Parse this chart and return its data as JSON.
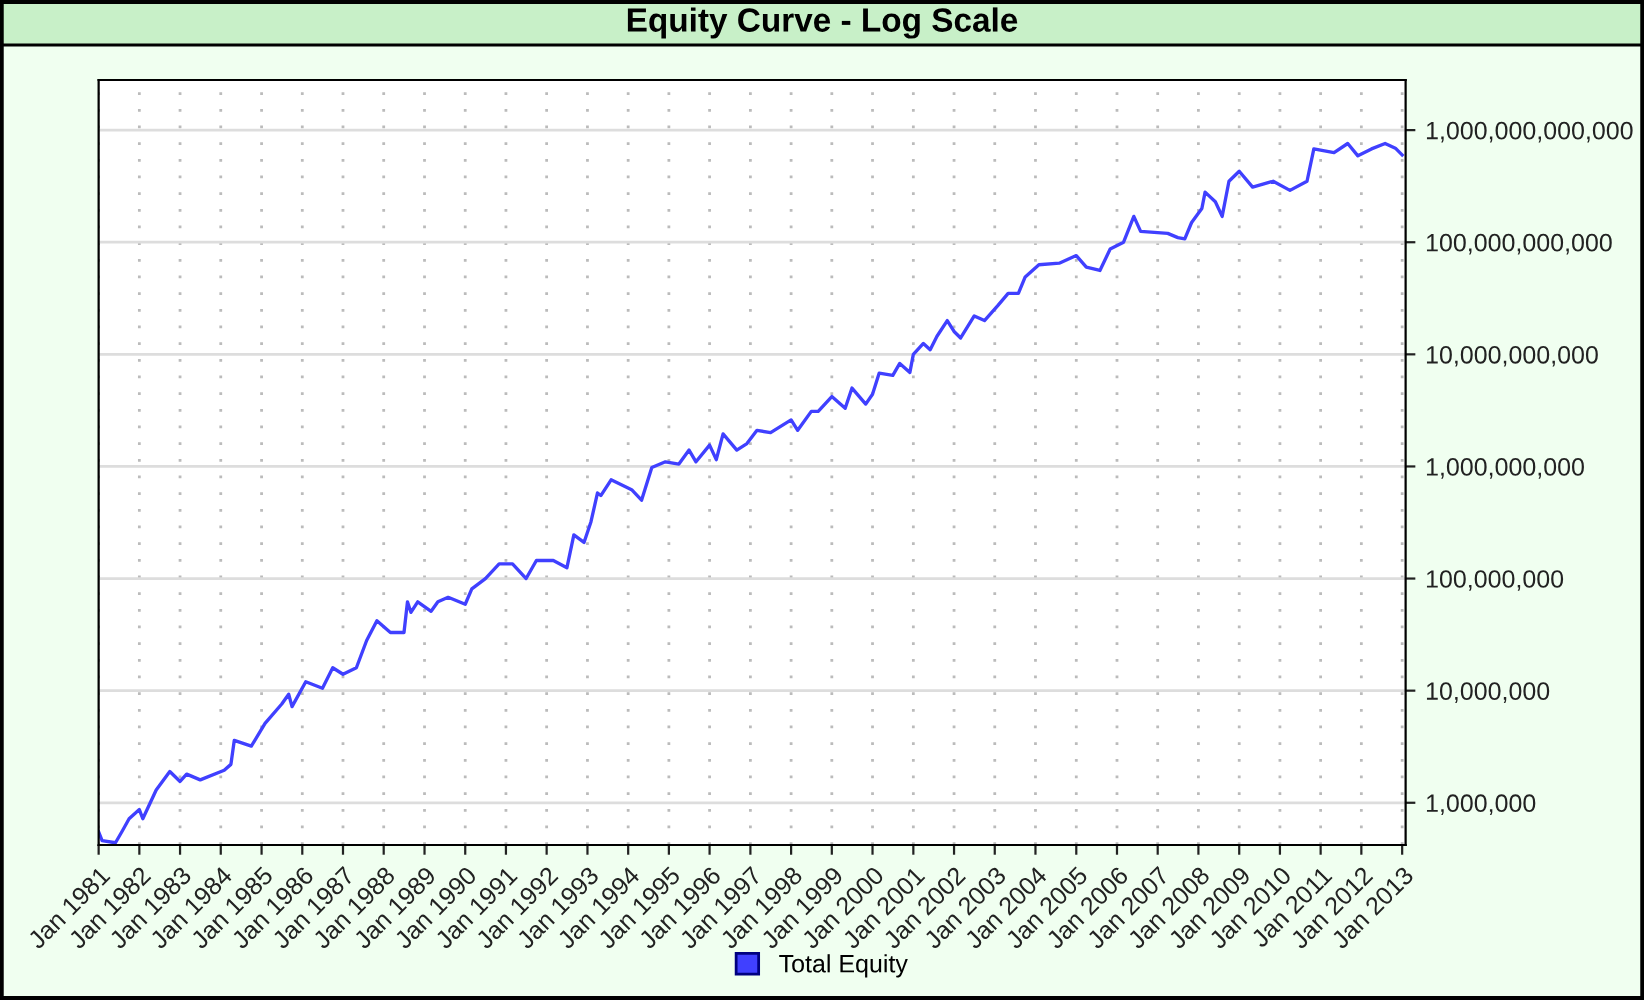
{
  "chart_data": {
    "type": "line",
    "title": "Equity Curve - Log Scale",
    "log": "y",
    "grid": true,
    "legend": "bottom",
    "marker": "none",
    "line_style": "solid",
    "xlim": [
      "1981-01",
      "2013-02"
    ],
    "xticks": [
      {
        "value": "1981-01",
        "label": "Jan 1981"
      },
      {
        "value": "1982-01",
        "label": "Jan 1982"
      },
      {
        "value": "1983-01",
        "label": "Jan 1983"
      },
      {
        "value": "1984-01",
        "label": "Jan 1984"
      },
      {
        "value": "1985-01",
        "label": "Jan 1985"
      },
      {
        "value": "1986-01",
        "label": "Jan 1986"
      },
      {
        "value": "1987-01",
        "label": "Jan 1987"
      },
      {
        "value": "1988-01",
        "label": "Jan 1988"
      },
      {
        "value": "1989-01",
        "label": "Jan 1989"
      },
      {
        "value": "1990-01",
        "label": "Jan 1990"
      },
      {
        "value": "1991-01",
        "label": "Jan 1991"
      },
      {
        "value": "1992-01",
        "label": "Jan 1992"
      },
      {
        "value": "1993-01",
        "label": "Jan 1993"
      },
      {
        "value": "1994-01",
        "label": "Jan 1994"
      },
      {
        "value": "1995-01",
        "label": "Jan 1995"
      },
      {
        "value": "1996-01",
        "label": "Jan 1996"
      },
      {
        "value": "1997-01",
        "label": "Jan 1997"
      },
      {
        "value": "1998-01",
        "label": "Jan 1998"
      },
      {
        "value": "1999-01",
        "label": "Jan 1999"
      },
      {
        "value": "2000-01",
        "label": "Jan 2000"
      },
      {
        "value": "2001-01",
        "label": "Jan 2001"
      },
      {
        "value": "2002-01",
        "label": "Jan 2002"
      },
      {
        "value": "2003-01",
        "label": "Jan 2003"
      },
      {
        "value": "2004-01",
        "label": "Jan 2004"
      },
      {
        "value": "2005-01",
        "label": "Jan 2005"
      },
      {
        "value": "2006-01",
        "label": "Jan 2006"
      },
      {
        "value": "2007-01",
        "label": "Jan 2007"
      },
      {
        "value": "2008-01",
        "label": "Jan 2008"
      },
      {
        "value": "2009-01",
        "label": "Jan 2009"
      },
      {
        "value": "2010-01",
        "label": "Jan 2010"
      },
      {
        "value": "2011-01",
        "label": "Jan 2011"
      },
      {
        "value": "2012-01",
        "label": "Jan 2012"
      },
      {
        "value": "2013-01",
        "label": "Jan 2013"
      }
    ],
    "ylim": [
      420000,
      2800000000000
    ],
    "yticks": [
      {
        "value": 1000000,
        "label": "1,000,000"
      },
      {
        "value": 10000000,
        "label": "10,000,000"
      },
      {
        "value": 100000000,
        "label": "100,000,000"
      },
      {
        "value": 1000000000,
        "label": "1,000,000,000"
      },
      {
        "value": 10000000000,
        "label": "10,000,000,000"
      },
      {
        "value": 100000000000,
        "label": "100,000,000,000"
      },
      {
        "value": 1000000000000,
        "label": "1,000,000,000,000"
      }
    ],
    "series": [
      {
        "name": "Total Equity",
        "color": "#4040ff",
        "x": [
          "1981-01",
          "1981-02",
          "1981-06",
          "1981-08",
          "1981-10",
          "1982-01",
          "1982-02",
          "1982-06",
          "1982-10",
          "1983-01",
          "1983-03",
          "1983-07",
          "1984-02",
          "1984-04",
          "1984-05",
          "1984-10",
          "1985-02",
          "1985-07",
          "1985-09",
          "1985-10",
          "1986-02",
          "1986-07",
          "1986-10",
          "1987-01",
          "1987-05",
          "1987-08",
          "1987-11",
          "1988-03",
          "1988-07",
          "1988-08",
          "1988-09",
          "1988-11",
          "1989-03",
          "1989-05",
          "1989-08",
          "1990-01",
          "1990-03",
          "1990-07",
          "1990-11",
          "1991-03",
          "1991-07",
          "1991-10",
          "1992-03",
          "1992-07",
          "1992-09",
          "1992-12",
          "1993-02",
          "1993-04",
          "1993-05",
          "1993-08",
          "1994-02",
          "1994-05",
          "1994-08",
          "1994-12",
          "1995-04",
          "1995-07",
          "1995-09",
          "1996-01",
          "1996-03",
          "1996-05",
          "1996-09",
          "1996-12",
          "1997-03",
          "1997-07",
          "1998-01",
          "1998-03",
          "1998-07",
          "1998-09",
          "1999-01",
          "1999-05",
          "1999-07",
          "1999-11",
          "2000-01",
          "2000-03",
          "2000-07",
          "2000-09",
          "2000-12",
          "2001-01",
          "2001-04",
          "2001-06",
          "2001-08",
          "2001-11",
          "2002-01",
          "2002-03",
          "2002-07",
          "2002-10",
          "2003-02",
          "2003-05",
          "2003-08",
          "2003-10",
          "2004-02",
          "2004-08",
          "2005-01",
          "2005-04",
          "2005-08",
          "2005-11",
          "2006-03",
          "2006-06",
          "2006-08",
          "2007-04",
          "2007-07",
          "2007-09",
          "2007-11",
          "2008-02",
          "2008-03",
          "2008-06",
          "2008-08",
          "2008-10",
          "2009-01",
          "2009-05",
          "2009-11",
          "2010-04",
          "2010-09",
          "2010-11",
          "2011-05",
          "2011-09",
          "2011-12",
          "2012-04",
          "2012-08",
          "2012-11",
          "2013-01"
        ],
        "values": [
          550000,
          460000,
          440000,
          560000,
          720000,
          870000,
          720000,
          1300000,
          1900000,
          1550000,
          1800000,
          1600000,
          1950000,
          2200000,
          3600000,
          3200000,
          5100000,
          7600000,
          9300000,
          7200000,
          12000000,
          10500000,
          16000000,
          14000000,
          16000000,
          28000000,
          42000000,
          33000000,
          33000000,
          62000000,
          50000000,
          62000000,
          51000000,
          62000000,
          68000000,
          59000000,
          81000000,
          100000000,
          135000000,
          135000000,
          100000000,
          145000000,
          145000000,
          125000000,
          245000000,
          210000000,
          320000000,
          580000000,
          550000000,
          760000000,
          620000000,
          500000000,
          980000000,
          1100000000,
          1050000000,
          1400000000,
          1100000000,
          1550000000,
          1150000000,
          1950000000,
          1400000000,
          1600000000,
          2100000000,
          2000000000,
          2600000000,
          2100000000,
          3100000000,
          3100000000,
          4200000000,
          3300000000,
          5000000000,
          3600000000,
          4400000000,
          6800000000,
          6500000000,
          8300000000,
          6900000000,
          10000000000,
          12500000000,
          11000000000,
          14500000000,
          20000000000,
          16000000000,
          14000000000,
          22000000000,
          20000000000,
          27500000000,
          35000000000,
          35000000000,
          49000000000,
          63000000000,
          65000000000,
          76000000000,
          60000000000,
          56000000000,
          87000000000,
          100000000000,
          170000000000,
          125000000000,
          120000000000,
          110000000000,
          107000000000,
          150000000000,
          200000000000,
          280000000000,
          230000000000,
          170000000000,
          350000000000,
          430000000000,
          310000000000,
          350000000000,
          290000000000,
          350000000000,
          680000000000,
          630000000000,
          760000000000,
          590000000000,
          680000000000,
          760000000000,
          690000000000,
          600000000000
        ]
      }
    ]
  }
}
